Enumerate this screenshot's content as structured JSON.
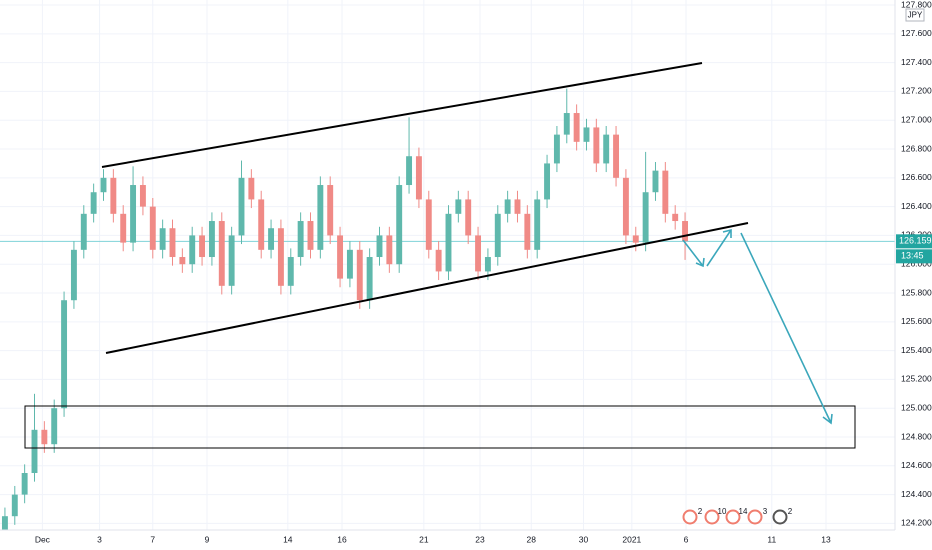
{
  "chart_data": {
    "type": "candlestick",
    "currency": "JPY",
    "up_color": "#5fb8ac",
    "down_color": "#f08a86",
    "open": [
      124.15,
      124.25,
      124.4,
      124.55,
      124.85,
      124.75,
      125.0,
      125.75,
      126.1,
      126.35,
      126.5,
      126.6,
      126.35,
      126.15,
      126.55,
      126.4,
      126.1,
      126.25,
      126.05,
      126.0,
      126.2,
      126.05,
      126.3,
      125.85,
      126.2,
      126.6,
      126.45,
      126.1,
      126.25,
      125.85,
      126.05,
      126.3,
      126.1,
      126.55,
      126.2,
      125.9,
      126.1,
      125.75,
      126.05,
      126.2,
      126.0,
      126.55,
      126.75,
      126.45,
      126.1,
      125.95,
      126.35,
      126.45,
      126.2,
      125.95,
      126.05,
      126.35,
      126.45,
      126.35,
      126.1,
      126.45,
      126.7,
      126.9,
      127.05,
      126.85,
      126.95,
      126.7,
      126.9,
      126.6,
      126.2,
      126.15,
      126.5,
      126.65,
      126.35,
      126.3
    ],
    "high": [
      124.31,
      124.46,
      124.61,
      125.1,
      124.91,
      125.06,
      125.81,
      126.16,
      126.41,
      126.56,
      126.66,
      126.66,
      126.41,
      126.68,
      126.61,
      126.46,
      126.31,
      126.31,
      126.11,
      126.26,
      126.26,
      126.36,
      126.36,
      126.26,
      126.72,
      126.66,
      126.51,
      126.31,
      126.31,
      126.11,
      126.36,
      126.36,
      126.61,
      126.61,
      126.26,
      126.16,
      126.16,
      126.11,
      126.26,
      126.26,
      126.61,
      127.02,
      126.81,
      126.51,
      126.16,
      126.41,
      126.51,
      126.51,
      126.26,
      126.11,
      126.41,
      126.51,
      126.51,
      126.41,
      126.51,
      126.76,
      126.96,
      127.22,
      127.11,
      127.01,
      127.01,
      126.96,
      126.96,
      126.66,
      126.26,
      126.78,
      126.71,
      126.71,
      126.41,
      126.36
    ],
    "low": [
      124.09,
      124.19,
      124.34,
      124.49,
      124.69,
      124.69,
      124.94,
      125.69,
      126.04,
      126.29,
      126.44,
      126.29,
      126.09,
      126.09,
      126.34,
      126.04,
      126.04,
      125.99,
      125.94,
      125.94,
      125.99,
      125.99,
      125.79,
      125.79,
      126.14,
      126.39,
      126.04,
      126.04,
      125.79,
      125.79,
      125.99,
      126.04,
      126.04,
      126.14,
      125.84,
      125.84,
      125.69,
      125.69,
      125.99,
      125.94,
      125.94,
      126.49,
      126.39,
      126.04,
      125.89,
      125.89,
      126.29,
      126.14,
      125.89,
      125.89,
      125.99,
      126.29,
      126.29,
      126.04,
      126.04,
      126.39,
      126.64,
      126.84,
      126.79,
      126.79,
      126.64,
      126.64,
      126.54,
      126.14,
      126.09,
      126.09,
      126.44,
      126.29,
      126.24,
      126.03
    ],
    "close": [
      124.25,
      124.4,
      124.55,
      124.85,
      124.75,
      125.0,
      125.75,
      126.1,
      126.35,
      126.5,
      126.6,
      126.35,
      126.15,
      126.55,
      126.4,
      126.1,
      126.25,
      126.05,
      126.0,
      126.2,
      126.05,
      126.3,
      125.85,
      126.2,
      126.6,
      126.45,
      126.1,
      126.25,
      125.85,
      126.05,
      126.3,
      126.1,
      126.55,
      126.2,
      125.9,
      126.1,
      125.75,
      126.05,
      126.2,
      126.0,
      126.55,
      126.75,
      126.45,
      126.1,
      125.95,
      126.35,
      126.45,
      126.2,
      125.95,
      126.05,
      126.35,
      126.45,
      126.35,
      126.1,
      126.45,
      126.7,
      126.9,
      127.05,
      126.85,
      126.95,
      126.7,
      126.9,
      126.6,
      126.2,
      126.15,
      126.5,
      126.65,
      126.35,
      126.3,
      126.16
    ],
    "ylim": [
      124.15,
      127.835
    ],
    "yticks": [
      {
        "value": 124.2,
        "label": "124.200"
      },
      {
        "value": 124.4,
        "label": "124.400"
      },
      {
        "value": 124.6,
        "label": "124.600"
      },
      {
        "value": 124.8,
        "label": "124.800"
      },
      {
        "value": 125.0,
        "label": "125.000"
      },
      {
        "value": 125.2,
        "label": "125.200"
      },
      {
        "value": 125.4,
        "label": "125.400"
      },
      {
        "value": 125.6,
        "label": "125.600"
      },
      {
        "value": 125.8,
        "label": "125.800"
      },
      {
        "value": 126.0,
        "label": "126.000"
      },
      {
        "value": 126.2,
        "label": "126.200"
      },
      {
        "value": 126.4,
        "label": "126.400"
      },
      {
        "value": 126.6,
        "label": "126.600"
      },
      {
        "value": 126.8,
        "label": "126.800"
      },
      {
        "value": 127.0,
        "label": "127.000"
      },
      {
        "value": 127.2,
        "label": "127.200"
      },
      {
        "value": 127.4,
        "label": "127.400"
      },
      {
        "value": 127.6,
        "label": "127.600"
      },
      {
        "value": 127.8,
        "label": "127.800"
      }
    ],
    "xlim": [
      0,
      90.8
    ],
    "xticks": [
      {
        "value": 4.3,
        "label": "Dec"
      },
      {
        "value": 10.1,
        "label": "3"
      },
      {
        "value": 15.5,
        "label": "7"
      },
      {
        "value": 21,
        "label": "9"
      },
      {
        "value": 29.2,
        "label": "14"
      },
      {
        "value": 34.7,
        "label": "16"
      },
      {
        "value": 43,
        "label": "21"
      },
      {
        "value": 48.7,
        "label": "23"
      },
      {
        "value": 53.9,
        "label": "28"
      },
      {
        "value": 59.2,
        "label": "30"
      },
      {
        "value": 64.1,
        "label": "2021"
      },
      {
        "value": 69.6,
        "label": "6"
      },
      {
        "value": 78.3,
        "label": "11"
      },
      {
        "value": 83.8,
        "label": "13"
      }
    ],
    "grid": true,
    "last_price": 126.159,
    "last_time": "13:45",
    "events": [
      "2",
      "10",
      "14",
      "3",
      "2"
    ]
  }
}
